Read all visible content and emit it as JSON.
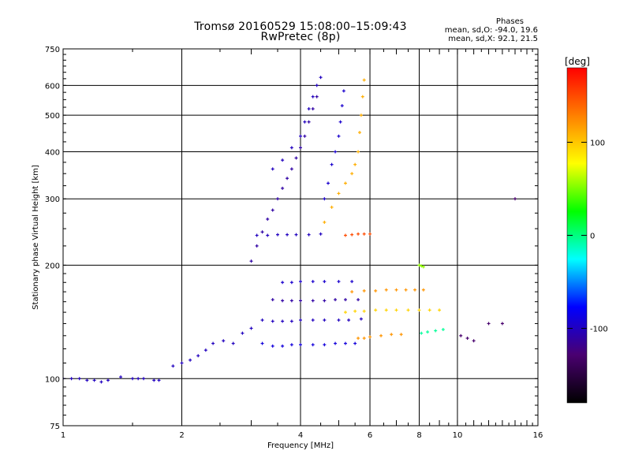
{
  "chart_data": {
    "type": "scatter",
    "title": "Tromsø 20160529 15:08:00–15:09:43",
    "subtitle": "RwPretec (8p)",
    "xlabel": "Frequency [MHz]",
    "ylabel": "Stationary phase Virtual Height [km]",
    "x_scale": "log",
    "y_scale": "log",
    "xlim": [
      1,
      16
    ],
    "ylim": [
      75,
      750
    ],
    "x_ticks": [
      1,
      2,
      4,
      6,
      8,
      10,
      16
    ],
    "y_ticks": [
      75,
      100,
      200,
      300,
      400,
      500,
      600,
      750
    ],
    "grid": true,
    "colorbar": {
      "label": "[deg]",
      "range": [
        -180,
        180
      ],
      "ticks": [
        100,
        0,
        -100
      ]
    },
    "stats": {
      "header": "Phases",
      "line_o": "mean, sd,O: -94.0, 19.6",
      "line_x": "mean, sd,X:  92.1, 21.5"
    },
    "series": [
      {
        "phase": -100,
        "points": [
          [
            1.0,
            100
          ],
          [
            1.05,
            100
          ],
          [
            1.1,
            100
          ],
          [
            1.15,
            99
          ],
          [
            1.2,
            99
          ],
          [
            1.25,
            98
          ],
          [
            1.3,
            99
          ],
          [
            1.4,
            101
          ],
          [
            1.5,
            100
          ],
          [
            1.55,
            100
          ],
          [
            1.6,
            100
          ],
          [
            1.7,
            99
          ],
          [
            1.75,
            99
          ]
        ]
      },
      {
        "phase": -100,
        "points": [
          [
            1.9,
            108
          ],
          [
            2.0,
            110
          ],
          [
            2.1,
            112
          ],
          [
            2.2,
            115
          ],
          [
            2.3,
            119
          ],
          [
            2.4,
            124
          ],
          [
            2.55,
            126
          ],
          [
            2.7,
            124
          ],
          [
            2.85,
            132
          ],
          [
            3.0,
            136
          ]
        ]
      },
      {
        "phase": -90,
        "points": [
          [
            3.2,
            124
          ],
          [
            3.4,
            122
          ],
          [
            3.6,
            122
          ],
          [
            3.8,
            123
          ],
          [
            4.0,
            123
          ],
          [
            4.3,
            123
          ],
          [
            4.6,
            123
          ],
          [
            4.9,
            124
          ],
          [
            5.2,
            124
          ],
          [
            5.5,
            124
          ]
        ]
      },
      {
        "phase": -100,
        "points": [
          [
            3.2,
            143
          ],
          [
            3.4,
            142
          ],
          [
            3.6,
            142
          ],
          [
            3.8,
            142
          ],
          [
            4.0,
            143
          ],
          [
            4.3,
            143
          ],
          [
            4.6,
            143
          ],
          [
            5.0,
            143
          ],
          [
            5.3,
            143
          ],
          [
            5.7,
            144
          ]
        ]
      },
      {
        "phase": -110,
        "points": [
          [
            3.4,
            162
          ],
          [
            3.6,
            161
          ],
          [
            3.8,
            161
          ],
          [
            4.0,
            161
          ],
          [
            4.3,
            161
          ],
          [
            4.6,
            161
          ],
          [
            4.9,
            162
          ],
          [
            5.2,
            162
          ],
          [
            5.6,
            162
          ]
        ]
      },
      {
        "phase": -95,
        "points": [
          [
            3.6,
            180
          ],
          [
            3.8,
            180
          ],
          [
            4.0,
            181
          ],
          [
            4.3,
            181
          ],
          [
            4.6,
            181
          ],
          [
            5.0,
            181
          ],
          [
            5.4,
            181
          ]
        ]
      },
      {
        "phase": -100,
        "points": [
          [
            3.1,
            240
          ],
          [
            3.3,
            240
          ],
          [
            3.5,
            241
          ],
          [
            3.7,
            241
          ],
          [
            3.9,
            241
          ],
          [
            4.2,
            241
          ],
          [
            4.5,
            242
          ]
        ]
      },
      {
        "phase": -110,
        "points": [
          [
            3.0,
            205
          ],
          [
            3.1,
            225
          ],
          [
            3.2,
            245
          ],
          [
            3.3,
            265
          ],
          [
            3.4,
            280
          ],
          [
            3.5,
            300
          ],
          [
            3.6,
            320
          ],
          [
            3.7,
            340
          ],
          [
            3.8,
            360
          ],
          [
            3.9,
            385
          ],
          [
            4.0,
            410
          ],
          [
            4.1,
            440
          ],
          [
            4.2,
            480
          ],
          [
            4.3,
            520
          ],
          [
            4.4,
            560
          ]
        ]
      },
      {
        "phase": -100,
        "points": [
          [
            3.4,
            360
          ],
          [
            3.6,
            380
          ],
          [
            3.8,
            410
          ],
          [
            4.0,
            440
          ],
          [
            4.1,
            480
          ],
          [
            4.2,
            520
          ],
          [
            4.3,
            560
          ],
          [
            4.4,
            600
          ],
          [
            4.5,
            630
          ]
        ]
      },
      {
        "phase": -95,
        "points": [
          [
            4.6,
            300
          ],
          [
            4.7,
            330
          ],
          [
            4.8,
            370
          ],
          [
            4.9,
            400
          ],
          [
            5.0,
            440
          ],
          [
            5.05,
            480
          ],
          [
            5.1,
            530
          ],
          [
            5.15,
            580
          ]
        ]
      },
      {
        "phase": 110,
        "points": [
          [
            4.6,
            260
          ],
          [
            4.8,
            285
          ],
          [
            5.0,
            310
          ],
          [
            5.2,
            330
          ],
          [
            5.4,
            350
          ],
          [
            5.5,
            370
          ],
          [
            5.6,
            400
          ],
          [
            5.65,
            450
          ],
          [
            5.7,
            500
          ],
          [
            5.75,
            560
          ],
          [
            5.8,
            620
          ]
        ]
      },
      {
        "phase": 120,
        "points": [
          [
            5.6,
            128
          ],
          [
            5.8,
            128
          ],
          [
            6.0,
            129
          ],
          [
            6.4,
            130
          ],
          [
            6.8,
            131
          ],
          [
            7.2,
            131
          ]
        ]
      },
      {
        "phase": 95,
        "points": [
          [
            5.2,
            150
          ],
          [
            5.5,
            151
          ],
          [
            5.8,
            151
          ],
          [
            6.2,
            152
          ],
          [
            6.6,
            152
          ],
          [
            7.0,
            152
          ],
          [
            7.5,
            152
          ],
          [
            8.0,
            152
          ],
          [
            8.5,
            152
          ],
          [
            9.0,
            152
          ]
        ]
      },
      {
        "phase": 120,
        "points": [
          [
            5.4,
            170
          ],
          [
            5.8,
            171
          ],
          [
            6.2,
            171
          ],
          [
            6.6,
            172
          ],
          [
            7.0,
            172
          ],
          [
            7.4,
            172
          ],
          [
            7.8,
            172
          ],
          [
            8.2,
            172
          ]
        ]
      },
      {
        "phase": 150,
        "points": [
          [
            5.2,
            240
          ],
          [
            5.4,
            241
          ],
          [
            5.6,
            242
          ],
          [
            5.8,
            242
          ],
          [
            6.0,
            242
          ]
        ]
      },
      {
        "phase": 55,
        "points": [
          [
            8.0,
            200
          ],
          [
            8.1,
            199
          ],
          [
            8.2,
            198
          ]
        ]
      },
      {
        "phase": -5,
        "points": [
          [
            8.1,
            132
          ],
          [
            8.4,
            133
          ],
          [
            8.8,
            134
          ],
          [
            9.2,
            135
          ]
        ]
      },
      {
        "phase": -130,
        "points": [
          [
            10.2,
            130
          ],
          [
            10.6,
            128
          ],
          [
            11.0,
            126
          ],
          [
            12.0,
            140
          ],
          [
            13.0,
            140
          ],
          [
            14.0,
            300
          ]
        ]
      }
    ]
  },
  "colors": {
    "grid": "#000000",
    "frame": "#000000",
    "colorbar_stops": [
      "#000000",
      "#4a0070",
      "#0000ff",
      "#00ffff",
      "#00ff00",
      "#ffff00",
      "#ff8000",
      "#ff0000"
    ]
  }
}
